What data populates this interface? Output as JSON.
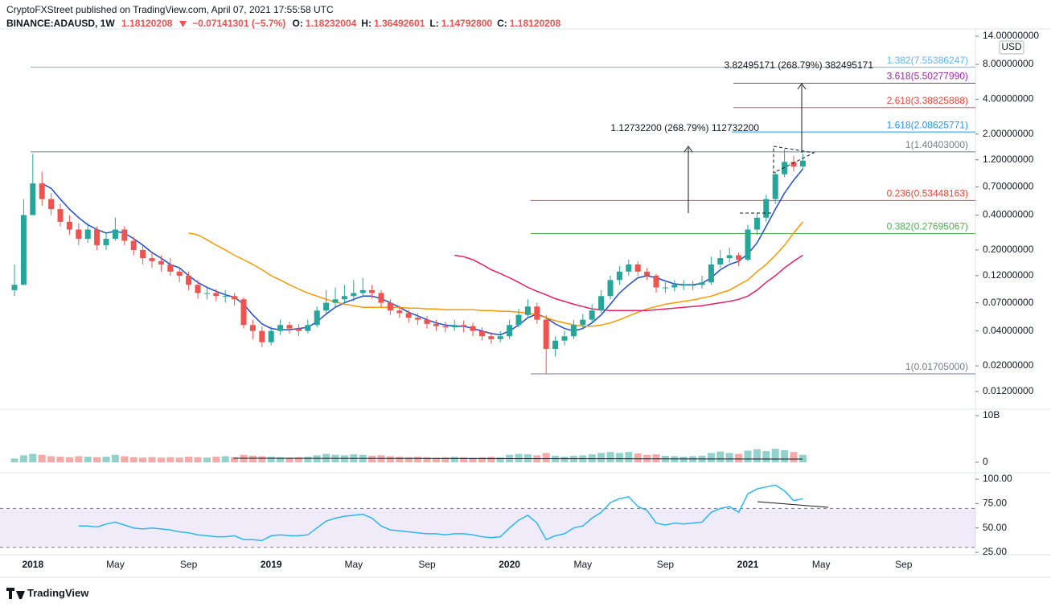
{
  "chart_data": {
    "type": "candlestick",
    "header": {
      "published": "CryptoFXStreet published on TradingView.com, April 07, 2021 17:55:58 UTC",
      "symbol": "BINANCE:ADAUSD, 1W",
      "price": "1.18120208",
      "change": "−0.07141301 (−5.7%)",
      "ohlc": [
        {
          "k": "O:",
          "v": "1.18232004"
        },
        {
          "k": "H:",
          "v": "1.36492601"
        },
        {
          "k": "L:",
          "v": "1.14792800"
        },
        {
          "k": "C:",
          "v": "1.18120208"
        }
      ]
    },
    "footer": "TradingView",
    "currency": "USD",
    "log": true,
    "ylim": [
      0.012,
      14
    ],
    "yticks": [
      {
        "value": 14,
        "label": "14.00000000"
      },
      {
        "value": 8,
        "label": "8.00000000"
      },
      {
        "value": 4,
        "label": "4.00000000"
      },
      {
        "value": 2,
        "label": "2.00000000"
      },
      {
        "value": 1.2,
        "label": "1.20000000"
      },
      {
        "value": 0.7,
        "label": "0.70000000"
      },
      {
        "value": 0.4,
        "label": "0.40000000"
      },
      {
        "value": 0.2,
        "label": "0.20000000"
      },
      {
        "value": 0.12,
        "label": "0.12000000"
      },
      {
        "value": 0.07,
        "label": "0.07000000"
      },
      {
        "value": 0.04,
        "label": "0.04000000"
      },
      {
        "value": 0.02,
        "label": "0.02000000"
      },
      {
        "value": 0.012,
        "label": "0.01200000"
      }
    ],
    "categories": [
      null,
      null,
      "2018",
      null,
      null,
      null,
      null,
      null,
      null,
      null,
      null,
      "May",
      null,
      null,
      null,
      null,
      null,
      null,
      null,
      "Sep",
      null,
      null,
      null,
      null,
      null,
      null,
      null,
      null,
      "2019",
      null,
      null,
      null,
      null,
      null,
      null,
      null,
      null,
      "May",
      null,
      null,
      null,
      null,
      null,
      null,
      null,
      "Sep",
      null,
      null,
      null,
      null,
      null,
      null,
      null,
      null,
      "2020",
      null,
      null,
      null,
      null,
      null,
      null,
      null,
      "May",
      null,
      null,
      null,
      null,
      null,
      null,
      null,
      null,
      "Sep",
      null,
      null,
      null,
      null,
      null,
      null,
      null,
      null,
      "2021",
      null,
      null,
      null,
      null,
      null,
      null,
      null,
      "May",
      null,
      null,
      null,
      null,
      null,
      null,
      null,
      null,
      "Sep"
    ],
    "up_color": "#26a69a",
    "down_color": "#ef5350",
    "open": [
      0.09,
      0.1,
      0.4,
      0.75,
      0.55,
      0.45,
      0.35,
      0.3,
      0.25,
      0.3,
      0.22,
      0.25,
      0.3,
      0.24,
      0.2,
      0.17,
      0.16,
      0.15,
      0.13,
      0.12,
      0.1,
      0.085,
      0.085,
      0.08,
      0.08,
      0.075,
      0.045,
      0.04,
      0.032,
      0.04,
      0.045,
      0.042,
      0.04,
      0.045,
      0.06,
      0.07,
      0.075,
      0.08,
      0.085,
      0.09,
      0.085,
      0.07,
      0.06,
      0.057,
      0.052,
      0.05,
      0.046,
      0.044,
      0.043,
      0.045,
      0.044,
      0.04,
      0.036,
      0.034,
      0.036,
      0.045,
      0.055,
      0.065,
      0.05,
      0.028,
      0.033,
      0.036,
      0.045,
      0.05,
      0.06,
      0.08,
      0.11,
      0.13,
      0.15,
      0.13,
      0.12,
      0.095,
      0.095,
      0.1,
      0.1,
      0.1,
      0.105,
      0.15,
      0.17,
      0.18,
      0.165,
      0.3,
      0.38,
      0.55,
      0.9,
      1.15,
      1.05,
      null,
      null,
      null,
      null,
      null,
      null,
      null,
      null,
      null,
      null,
      null
    ],
    "high": [
      0.15,
      0.55,
      1.35,
      0.95,
      0.62,
      0.5,
      0.4,
      0.34,
      0.34,
      0.32,
      0.28,
      0.38,
      0.32,
      0.26,
      0.22,
      0.19,
      0.18,
      0.17,
      0.14,
      0.13,
      0.11,
      0.095,
      0.092,
      0.09,
      0.085,
      0.078,
      0.05,
      0.044,
      0.044,
      0.05,
      0.048,
      0.046,
      0.05,
      0.065,
      0.09,
      0.095,
      0.1,
      0.11,
      0.115,
      0.1,
      0.09,
      0.075,
      0.066,
      0.061,
      0.057,
      0.054,
      0.05,
      0.048,
      0.05,
      0.049,
      0.047,
      0.043,
      0.039,
      0.04,
      0.05,
      0.062,
      0.075,
      0.07,
      0.055,
      0.036,
      0.04,
      0.05,
      0.056,
      0.068,
      0.09,
      0.12,
      0.145,
      0.165,
      0.16,
      0.14,
      0.125,
      0.105,
      0.11,
      0.11,
      0.108,
      0.12,
      0.175,
      0.2,
      0.21,
      0.19,
      0.33,
      0.42,
      0.6,
      0.95,
      1.48,
      1.3,
      1.36,
      null,
      null,
      null,
      null,
      null,
      null,
      null,
      null,
      null,
      null,
      null
    ],
    "low": [
      0.08,
      0.1,
      0.4,
      0.48,
      0.4,
      0.32,
      0.27,
      0.22,
      0.23,
      0.2,
      0.2,
      0.24,
      0.22,
      0.18,
      0.15,
      0.14,
      0.13,
      0.12,
      0.105,
      0.09,
      0.076,
      0.075,
      0.072,
      0.07,
      0.066,
      0.042,
      0.034,
      0.029,
      0.03,
      0.037,
      0.038,
      0.036,
      0.038,
      0.043,
      0.056,
      0.065,
      0.068,
      0.072,
      0.078,
      0.076,
      0.064,
      0.055,
      0.052,
      0.047,
      0.045,
      0.042,
      0.04,
      0.039,
      0.04,
      0.039,
      0.036,
      0.033,
      0.031,
      0.032,
      0.034,
      0.043,
      0.052,
      0.046,
      0.017,
      0.024,
      0.03,
      0.034,
      0.042,
      0.047,
      0.057,
      0.075,
      0.1,
      0.12,
      0.12,
      0.11,
      0.085,
      0.085,
      0.088,
      0.09,
      0.09,
      0.093,
      0.1,
      0.14,
      0.155,
      0.145,
      0.16,
      0.27,
      0.35,
      0.5,
      0.85,
      0.95,
      1.0,
      null,
      null,
      null,
      null,
      null,
      null,
      null,
      null,
      null,
      null,
      null
    ],
    "close": [
      0.1,
      0.4,
      0.75,
      0.55,
      0.45,
      0.35,
      0.3,
      0.25,
      0.3,
      0.22,
      0.25,
      0.3,
      0.24,
      0.2,
      0.17,
      0.16,
      0.15,
      0.13,
      0.12,
      0.1,
      0.085,
      0.085,
      0.08,
      0.08,
      0.075,
      0.045,
      0.04,
      0.032,
      0.04,
      0.045,
      0.042,
      0.04,
      0.045,
      0.06,
      0.07,
      0.075,
      0.08,
      0.085,
      0.09,
      0.085,
      0.07,
      0.06,
      0.057,
      0.052,
      0.05,
      0.046,
      0.044,
      0.043,
      0.045,
      0.044,
      0.04,
      0.036,
      0.034,
      0.036,
      0.045,
      0.055,
      0.065,
      0.05,
      0.028,
      0.033,
      0.036,
      0.045,
      0.05,
      0.06,
      0.08,
      0.11,
      0.13,
      0.15,
      0.13,
      0.12,
      0.095,
      0.095,
      0.1,
      0.1,
      0.1,
      0.105,
      0.15,
      0.17,
      0.18,
      0.165,
      0.3,
      0.38,
      0.55,
      0.9,
      1.15,
      1.05,
      1.18,
      null,
      null,
      null,
      null,
      null,
      null,
      null,
      null,
      null,
      null,
      null
    ],
    "lines": [
      {
        "color": "#1e4bd2",
        "values": [
          null,
          null,
          null,
          0.75,
          0.68,
          0.55,
          0.45,
          0.38,
          0.33,
          0.3,
          0.28,
          0.29,
          0.28,
          0.25,
          0.22,
          0.19,
          0.17,
          0.15,
          0.14,
          0.12,
          0.105,
          0.095,
          0.088,
          0.082,
          0.078,
          0.068,
          0.055,
          0.046,
          0.042,
          0.041,
          0.041,
          0.042,
          0.043,
          0.048,
          0.056,
          0.064,
          0.07,
          0.075,
          0.08,
          0.08,
          0.076,
          0.07,
          0.064,
          0.058,
          0.054,
          0.05,
          0.047,
          0.045,
          0.044,
          0.044,
          0.042,
          0.04,
          0.038,
          0.037,
          0.04,
          0.045,
          0.052,
          0.056,
          0.052,
          0.046,
          0.042,
          0.04,
          0.042,
          0.047,
          0.055,
          0.068,
          0.085,
          0.1,
          0.115,
          0.12,
          0.115,
          0.108,
          0.102,
          0.1,
          0.1,
          0.103,
          0.115,
          0.135,
          0.15,
          0.16,
          0.185,
          0.23,
          0.32,
          0.45,
          0.62,
          0.8,
          1.0,
          null,
          null,
          null,
          null,
          null,
          null,
          null,
          null,
          null,
          null,
          null
        ]
      },
      {
        "color": "#ff9800",
        "values": [
          null,
          null,
          null,
          null,
          null,
          null,
          null,
          null,
          null,
          null,
          null,
          null,
          null,
          null,
          null,
          null,
          null,
          null,
          null,
          0.28,
          0.27,
          0.245,
          0.22,
          0.2,
          0.18,
          0.165,
          0.15,
          0.135,
          0.12,
          0.11,
          0.1,
          0.092,
          0.085,
          0.08,
          0.075,
          0.071,
          0.068,
          0.066,
          0.064,
          0.064,
          0.064,
          0.064,
          0.064,
          0.063,
          0.063,
          0.062,
          0.062,
          0.061,
          0.061,
          0.061,
          0.061,
          0.06,
          0.06,
          0.059,
          0.059,
          0.058,
          0.057,
          0.055,
          0.052,
          0.049,
          0.047,
          0.045,
          0.044,
          0.044,
          0.045,
          0.047,
          0.05,
          0.054,
          0.058,
          0.062,
          0.065,
          0.068,
          0.07,
          0.072,
          0.074,
          0.077,
          0.08,
          0.085,
          0.09,
          0.1,
          0.11,
          0.13,
          0.15,
          0.18,
          0.22,
          0.28,
          0.35,
          null,
          null,
          null,
          null,
          null,
          null,
          null,
          null,
          null,
          null,
          null
        ]
      },
      {
        "color": "#e91e63",
        "values": [
          null,
          null,
          null,
          null,
          null,
          null,
          null,
          null,
          null,
          null,
          null,
          null,
          null,
          null,
          null,
          null,
          null,
          null,
          null,
          null,
          null,
          null,
          null,
          null,
          null,
          null,
          null,
          null,
          null,
          null,
          null,
          null,
          null,
          null,
          null,
          null,
          null,
          null,
          null,
          null,
          null,
          null,
          null,
          null,
          null,
          null,
          null,
          null,
          0.18,
          0.175,
          0.165,
          0.15,
          0.135,
          0.125,
          0.115,
          0.105,
          0.095,
          0.088,
          0.082,
          0.076,
          0.072,
          0.068,
          0.065,
          0.062,
          0.061,
          0.06,
          0.06,
          0.06,
          0.06,
          0.06,
          0.061,
          0.062,
          0.063,
          0.064,
          0.065,
          0.066,
          0.068,
          0.07,
          0.072,
          0.075,
          0.08,
          0.09,
          0.105,
          0.12,
          0.14,
          0.16,
          0.18,
          null,
          null,
          null,
          null,
          null,
          null,
          null,
          null,
          null,
          null,
          null
        ]
      }
    ],
    "fibs": [
      {
        "label": "1.382(7.55386247)",
        "level": 7.55386247,
        "color": "#64b5f6"
      },
      {
        "label": "3.618(5.50277990)",
        "level": 5.5027799,
        "color": "#9c27b0"
      },
      {
        "label": "2.618(3.38825888)",
        "level": 3.38825888,
        "color": "#f44336"
      },
      {
        "label": "1.618(2.08625771)",
        "level": 2.08625771,
        "color": "#2196f3"
      },
      {
        "label": "1(1.40403000)",
        "level": 1.40403,
        "color": "#787b86"
      },
      {
        "label": "0.236(0.53448163)",
        "level": 0.53448163,
        "color": "#f44336"
      },
      {
        "label": "0.382(0.27695067)",
        "level": 0.27695067,
        "color": "#4caf50"
      },
      {
        "label": "1(0.01705000)",
        "level": 0.01705,
        "color": "#787b86"
      }
    ],
    "annotations": [
      "3.82495171 (268.79%) 382495171",
      "1.12732200 (268.79%) 112732200"
    ],
    "volume": {
      "ylim": [
        0,
        10000000000
      ],
      "yticks": [
        {
          "value": 10000000000,
          "label": "10B"
        },
        0
      ],
      "values": [
        800000000.0,
        1500000000.0,
        1800000000.0,
        1600000000.0,
        1300000000.0,
        1200000000.0,
        1100000000.0,
        1300000000.0,
        1200000000.0,
        1100000000.0,
        1200000000.0,
        1600000000.0,
        1300000000.0,
        1100000000.0,
        1000000000.0,
        1100000000.0,
        1000000000.0,
        1100000000.0,
        1000000000.0,
        1200000000.0,
        1100000000.0,
        1000000000.0,
        1200000000.0,
        1300000000.0,
        1100000000.0,
        1600000000.0,
        1400000000.0,
        1300000000.0,
        1200000000.0,
        1100000000.0,
        1000000000.0,
        1100000000.0,
        1200000000.0,
        1500000000.0,
        1800000000.0,
        1600000000.0,
        1500000000.0,
        1700000000.0,
        1600000000.0,
        1400000000.0,
        1500000000.0,
        1300000000.0,
        1200000000.0,
        1100000000.0,
        1200000000.0,
        1100000000.0,
        1000000000.0,
        1100000000.0,
        1200000000.0,
        1100000000.0,
        1000000000.0,
        1100000000.0,
        1200000000.0,
        1100000000.0,
        1600000000.0,
        1800000000.0,
        1700000000.0,
        1500000000.0,
        2000000000.0,
        1400000000.0,
        1200000000.0,
        1400000000.0,
        1500000000.0,
        1700000000.0,
        2000000000.0,
        2200000000.0,
        2000000000.0,
        2200000000.0,
        1900000000.0,
        1600000000.0,
        1700000000.0,
        1400000000.0,
        1300000000.0,
        1200000000.0,
        1300000000.0,
        1400000000.0,
        2000000000.0,
        2300000000.0,
        2000000000.0,
        1800000000.0,
        2500000000.0,
        2800000000.0,
        2400000000.0,
        2900000000.0,
        2600000000.0,
        2200000000.0,
        1600000000.0,
        null,
        null,
        null,
        null,
        null,
        null,
        null,
        null,
        null,
        null,
        null
      ]
    },
    "rsi": {
      "ylim": [
        25,
        100
      ],
      "yticks": [
        {
          "value": 100,
          "label": "100.00"
        },
        {
          "value": 75,
          "label": "75.00"
        },
        {
          "value": 50,
          "label": "50.00"
        },
        {
          "value": 25,
          "label": "25.00"
        }
      ],
      "bands": [
        30,
        70
      ],
      "color": "#29b6f6",
      "band_color": "#7e57c2",
      "values": [
        null,
        null,
        null,
        null,
        null,
        null,
        null,
        52,
        52,
        51,
        54,
        56,
        53,
        50,
        49,
        50,
        49,
        48,
        46,
        45,
        43,
        42,
        41,
        41,
        42,
        38,
        38,
        37,
        42,
        43,
        42,
        42,
        43,
        50,
        57,
        60,
        62,
        63,
        64,
        60,
        52,
        48,
        47,
        46,
        45,
        44,
        44,
        43,
        44,
        44,
        43,
        41,
        40,
        41,
        50,
        58,
        63,
        55,
        38,
        42,
        44,
        50,
        52,
        60,
        66,
        76,
        80,
        82,
        72,
        68,
        55,
        53,
        55,
        54,
        55,
        56,
        66,
        70,
        72,
        66,
        85,
        90,
        92,
        94,
        88,
        78,
        80,
        null,
        null,
        null,
        null,
        null,
        null,
        null,
        null,
        null,
        null,
        null
      ]
    }
  }
}
